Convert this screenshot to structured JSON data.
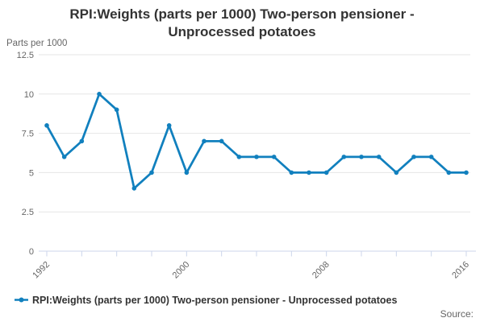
{
  "header": {
    "title_line1": "RPI:Weights (parts per 1000) Two-person pensioner -",
    "title_line2": "Unprocessed potatoes"
  },
  "axes": {
    "y_title": "Parts per 1000"
  },
  "legend": {
    "label": "RPI:Weights (parts per 1000) Two-person pensioner - Unprocessed potatoes"
  },
  "source": {
    "label": "Source:"
  },
  "colors": {
    "series": "#1180BE",
    "grid": "#e6e6e6",
    "axis_line": "#ccd6eb",
    "tick_label": "#666666",
    "title": "#333333"
  },
  "chart_data": {
    "type": "line",
    "title": "RPI:Weights (parts per 1000) Two-person pensioner - Unprocessed potatoes",
    "xlabel": "",
    "ylabel": "Parts per 1000",
    "x": [
      1992,
      1993,
      1994,
      1995,
      1996,
      1997,
      1998,
      1999,
      2000,
      2001,
      2002,
      2003,
      2004,
      2005,
      2006,
      2007,
      2008,
      2009,
      2010,
      2011,
      2012,
      2013,
      2014,
      2015,
      2016
    ],
    "series": [
      {
        "name": "RPI:Weights (parts per 1000) Two-person pensioner - Unprocessed potatoes",
        "values": [
          8,
          6,
          7,
          10,
          9,
          4,
          5,
          8,
          5,
          7,
          7,
          6,
          6,
          6,
          5,
          5,
          5,
          6,
          6,
          6,
          5,
          6,
          6,
          5,
          5
        ]
      }
    ],
    "ylim": [
      0,
      12.5
    ],
    "y_ticks": [
      0,
      2.5,
      5,
      7.5,
      10,
      12.5
    ],
    "x_tick_interval_years": 2,
    "x_label_years": [
      1992,
      2000,
      2008,
      2016
    ],
    "grid": true,
    "legend_position": "bottom"
  }
}
